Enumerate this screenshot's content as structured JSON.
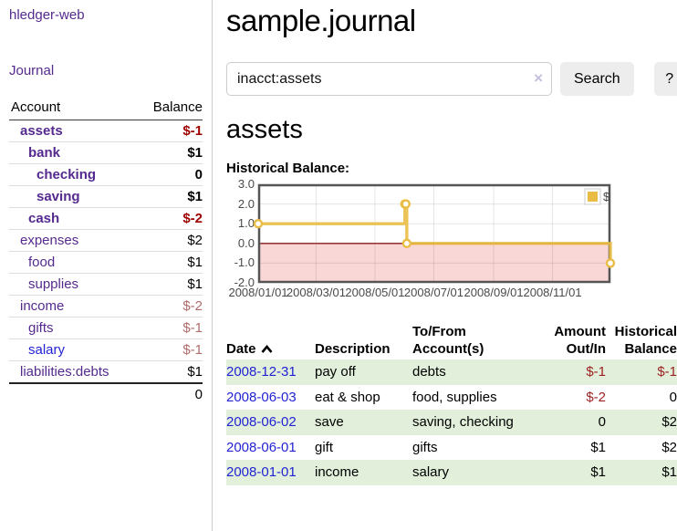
{
  "app": {
    "title": "hledger-web"
  },
  "colors": {
    "link_purple": "#552a8e",
    "link_blue": "#2323d4",
    "negative_strong": "#9d0000",
    "negative_muted": "#b06b6b",
    "table_negative": "#9d1f1f",
    "row_green": "#e1efdb"
  },
  "sidebar": {
    "journal_link": "Journal",
    "accounts_header": {
      "account": "Account",
      "balance": "Balance"
    },
    "accounts": [
      {
        "name": "assets",
        "balance": "$-1",
        "indent": 1,
        "bold": true
      },
      {
        "name": "bank",
        "balance": "$1",
        "indent": 2,
        "bold": true
      },
      {
        "name": "checking",
        "balance": "0",
        "indent": 3,
        "bold": true
      },
      {
        "name": "saving",
        "balance": "$1",
        "indent": 3,
        "bold": true
      },
      {
        "name": "cash",
        "balance": "$-2",
        "indent": 2,
        "bold": true
      },
      {
        "name": "expenses",
        "balance": "$2",
        "indent": 1
      },
      {
        "name": "food",
        "balance": "$1",
        "indent": 2
      },
      {
        "name": "supplies",
        "balance": "$1",
        "indent": 2
      },
      {
        "name": "income",
        "balance": "$-2",
        "indent": 1
      },
      {
        "name": "gifts",
        "balance": "$-1",
        "indent": 2
      },
      {
        "name": "salary",
        "balance": "$-1",
        "indent": 2,
        "link_blue": true
      },
      {
        "name": "liabilities:debts",
        "balance": "$1",
        "indent": 1
      }
    ],
    "total": "0"
  },
  "main": {
    "title": "sample.journal",
    "search": {
      "value": "inacct:assets",
      "clear_icon": "×",
      "button": "Search",
      "help_button": "?"
    },
    "account_heading": "assets",
    "chart_label": "Historical Balance:"
  },
  "chart_data": {
    "type": "line",
    "title": "Historical Balance",
    "step": true,
    "xlim": [
      "2008-01-01",
      "2008-12-31"
    ],
    "ylim": [
      -2,
      3
    ],
    "x_ticks": [
      "2008/01/01",
      "2008/03/01",
      "2008/05/01",
      "2008/07/01",
      "2008/09/01",
      "2008/11/01"
    ],
    "y_ticks": [
      3.0,
      2.0,
      1.0,
      0.0,
      -1.0,
      -2.0
    ],
    "grid": true,
    "legend_position": "top-right",
    "series": [
      {
        "name": "$",
        "color": "#e9bd45",
        "points": [
          [
            "2008-01-01",
            1
          ],
          [
            "2008-06-01",
            2
          ],
          [
            "2008-06-02",
            2
          ],
          [
            "2008-06-03",
            0
          ],
          [
            "2008-12-31",
            -1
          ]
        ]
      }
    ],
    "negative_fill": "#f9d7d7",
    "zero_line_color": "#8b1a1a",
    "border_color": "#555",
    "grid_color": "rgba(0,0,0,0.1)"
  },
  "table": {
    "headers": [
      "Date",
      "Description",
      "To/From Account(s)",
      "Amount Out/In",
      "Historical Balance"
    ],
    "sort_icon": "chevron-up",
    "rows": [
      {
        "date": "2008-12-31",
        "description": "pay off",
        "accounts": "debts",
        "amount": "$-1",
        "balance": "$-1"
      },
      {
        "date": "2008-06-03",
        "description": "eat & shop",
        "accounts": "food, supplies",
        "amount": "$-2",
        "balance": "0"
      },
      {
        "date": "2008-06-02",
        "description": "save",
        "accounts": "saving, checking",
        "amount": "0",
        "balance": "$2"
      },
      {
        "date": "2008-06-01",
        "description": "gift",
        "accounts": "gifts",
        "amount": "$1",
        "balance": "$2"
      },
      {
        "date": "2008-01-01",
        "description": "income",
        "accounts": "salary",
        "amount": "$1",
        "balance": "$1"
      }
    ]
  }
}
